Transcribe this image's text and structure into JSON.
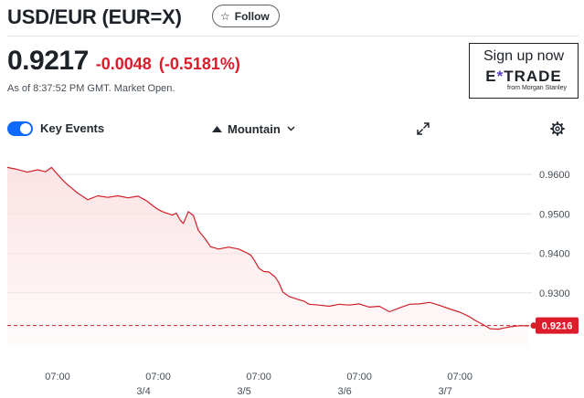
{
  "header": {
    "title": "USD/EUR (EUR=X)",
    "follow_label": "Follow"
  },
  "quote": {
    "price": "0.9217",
    "change": "-0.0048",
    "change_percent": "(-0.5181%)",
    "as_of": "As of 8:37:52 PM GMT. Market Open."
  },
  "ad": {
    "cta": "Sign up now",
    "brand_pre": "E",
    "brand_x": "*",
    "brand_post": "TRADE",
    "sub": "from Morgan Stanley"
  },
  "toolbar": {
    "key_events_label": "Key Events",
    "key_events_on": true,
    "chart_type": "Mountain"
  },
  "icons": {
    "follow": "star-icon",
    "chart_type": "mountain-icon",
    "dropdown": "chevron-down-icon",
    "fullscreen": "expand-icon",
    "settings": "gear-icon"
  },
  "colors": {
    "negative": "#dc1c2a",
    "toggle": "#0f69ff",
    "series_line": "#d0202a",
    "series_fill": "#fbe3e4",
    "grid": "#e0e4e9"
  },
  "chart_data": {
    "type": "area",
    "title": "",
    "xlabel": "",
    "ylabel": "",
    "y_ticks": [
      "0.9600",
      "0.9500",
      "0.9400",
      "0.9300"
    ],
    "y_tick_values": [
      0.96,
      0.95,
      0.94,
      0.93
    ],
    "ylim": [
      0.9163,
      0.9649
    ],
    "grid": true,
    "x_ticks": [
      {
        "time": "07:00",
        "date": "",
        "x": 0.5
      },
      {
        "time": "07:00",
        "date": "3/4",
        "x": 1.5
      },
      {
        "time": "07:00",
        "date": "3/5",
        "x": 2.5
      },
      {
        "time": "07:00",
        "date": "3/6",
        "x": 3.5
      },
      {
        "time": "07:00",
        "date": "3/7",
        "x": 4.5
      }
    ],
    "xlim": [
      0,
      5.18
    ],
    "reference_line": 0.9217,
    "last_value_label": "0.9216",
    "series": [
      {
        "x": [
          0.0,
          0.08,
          0.2,
          0.3,
          0.38,
          0.44,
          0.48,
          0.55,
          0.6,
          0.7,
          0.8,
          0.9,
          1.0,
          1.1,
          1.2,
          1.3,
          1.38,
          1.42,
          1.5,
          1.56,
          1.6,
          1.64,
          1.68,
          1.72,
          1.75,
          1.8,
          1.85,
          1.9,
          1.97,
          2.02,
          2.1,
          2.2,
          2.3,
          2.36,
          2.42,
          2.46,
          2.5,
          2.55,
          2.6,
          2.66,
          2.7,
          2.74,
          2.8,
          2.88,
          2.95,
          3.0,
          3.1,
          3.2,
          3.3,
          3.4,
          3.5,
          3.6,
          3.7,
          3.8,
          3.9,
          4.0,
          4.1,
          4.2,
          4.3,
          4.4,
          4.5,
          4.6,
          4.66,
          4.72,
          4.8,
          4.88,
          4.94,
          5.0,
          5.1,
          5.18
        ],
        "y": [
          0.9618,
          0.9614,
          0.9606,
          0.9612,
          0.9607,
          0.9618,
          0.9606,
          0.9586,
          0.9574,
          0.9553,
          0.9536,
          0.9546,
          0.9542,
          0.9546,
          0.9541,
          0.9545,
          0.9534,
          0.9526,
          0.9511,
          0.9504,
          0.9501,
          0.9497,
          0.9502,
          0.9484,
          0.9476,
          0.9506,
          0.9496,
          0.9458,
          0.9436,
          0.9417,
          0.9411,
          0.9416,
          0.9411,
          0.9404,
          0.9396,
          0.9381,
          0.9363,
          0.9354,
          0.9353,
          0.9341,
          0.9326,
          0.9302,
          0.9291,
          0.9284,
          0.9279,
          0.9271,
          0.9269,
          0.9266,
          0.9271,
          0.9269,
          0.9272,
          0.9264,
          0.9266,
          0.9252,
          0.9262,
          0.9271,
          0.9272,
          0.9276,
          0.9268,
          0.9259,
          0.9251,
          0.9239,
          0.9229,
          0.9221,
          0.9209,
          0.9208,
          0.9211,
          0.9214,
          0.9217,
          0.9216
        ]
      }
    ]
  }
}
